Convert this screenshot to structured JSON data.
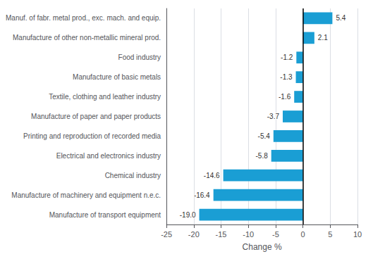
{
  "chart_data": {
    "type": "bar",
    "orientation": "horizontal",
    "categories": [
      "Manufacture of transport equipment",
      "Manufacture of machinery and equipment n.e.c.",
      "Chemical industry",
      "Electrical and electronics industry",
      "Printing and reproduction of recorded media",
      "Manufacture of paper and paper products",
      "Textile, clothing and leather industry",
      "Manufacture of basic metals",
      "Food industry",
      "Manufacture of other non-metallic mineral prod.",
      "Manuf. of fabr. metal prod., exc. mach. and equip."
    ],
    "values": [
      -19.0,
      -16.4,
      -14.6,
      -5.8,
      -5.4,
      -3.7,
      -1.6,
      -1.3,
      -1.2,
      2.1,
      5.4
    ],
    "value_labels": [
      "-19.0",
      "-16.4",
      "-14.6",
      "-5.8",
      "-5.4",
      "-3.7",
      "-1.6",
      "-1.3",
      "-1.2",
      "2.1",
      "5.4"
    ],
    "data_labels": true,
    "color": "#1a9ed4",
    "xlabel": "Change %",
    "xlim": [
      -25,
      10
    ],
    "xticks": [
      -25,
      -20,
      -15,
      -10,
      -5,
      0,
      5,
      10
    ],
    "grid": true
  }
}
